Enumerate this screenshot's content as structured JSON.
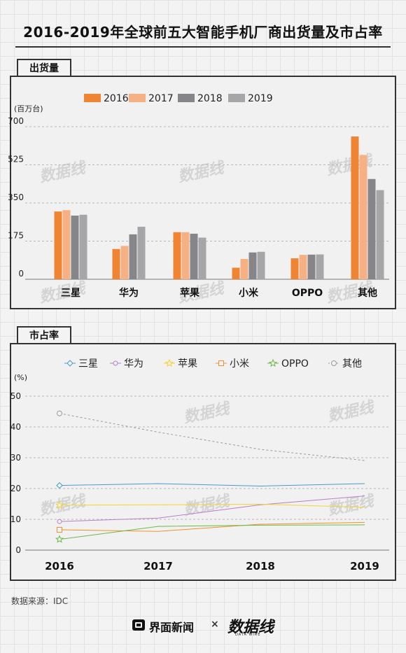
{
  "title": "2016-2019年全球前五大智能手机厂商出货量及市占率",
  "shipments": {
    "tab_label": "出货量",
    "unit_label": "(百万台)"
  },
  "share": {
    "tab_label": "市占率",
    "unit_label": "(%)"
  },
  "watermark": "数据线",
  "source": "数据来源：IDC",
  "brand": {
    "name": "界面新闻",
    "times": "×",
    "partner": "数据线",
    "partner_sub": "DATA WIRE"
  },
  "colors": {
    "bar_2016": "#ef8432",
    "bar_2017": "#f5b183",
    "bar_2018": "#86868a",
    "bar_2019": "#a6a6a8",
    "samsung": "#4a9bc6",
    "huawei": "#b57fc9",
    "apple": "#f2d430",
    "xiaomi": "#f1912e",
    "oppo": "#6cb94a",
    "others": "#9a9a9a"
  },
  "chart_data": [
    {
      "type": "bar",
      "categories": [
        "三星",
        "华为",
        "苹果",
        "小米",
        "OPPO",
        "其他"
      ],
      "series": [
        {
          "name": "2016",
          "values": [
            311,
            139,
            216,
            53,
            96,
            655
          ]
        },
        {
          "name": "2017",
          "values": [
            317,
            153,
            216,
            93,
            112,
            570
          ]
        },
        {
          "name": "2018",
          "values": [
            292,
            206,
            209,
            123,
            113,
            460
          ]
        },
        {
          "name": "2019",
          "values": [
            296,
            241,
            191,
            126,
            114,
            409
          ]
        }
      ],
      "yticks": [
        0,
        175,
        350,
        525,
        700
      ],
      "ylim": [
        0,
        700
      ],
      "ylabel": "(百万台)",
      "legend": "top-center",
      "grid": true
    },
    {
      "type": "line",
      "x": [
        "2016",
        "2017",
        "2018",
        "2019"
      ],
      "series": [
        {
          "name": "三星",
          "values": [
            21.0,
            21.6,
            20.8,
            21.6
          ],
          "marker": "diamond",
          "dashed": false
        },
        {
          "name": "华为",
          "values": [
            9.3,
            10.4,
            14.7,
            17.6
          ],
          "marker": "dot",
          "dashed": false
        },
        {
          "name": "苹果",
          "values": [
            14.6,
            14.7,
            14.9,
            13.9
          ],
          "marker": "star",
          "dashed": false
        },
        {
          "name": "小米",
          "values": [
            6.6,
            6.1,
            8.4,
            9.0
          ],
          "marker": "square",
          "dashed": false
        },
        {
          "name": "OPPO",
          "values": [
            3.5,
            7.7,
            8.1,
            8.2
          ],
          "marker": "star",
          "dashed": false
        },
        {
          "name": "其他",
          "values": [
            44.4,
            38.3,
            32.7,
            29.1
          ],
          "marker": "circle",
          "dashed": true
        }
      ],
      "yticks": [
        0,
        10,
        20,
        30,
        40,
        50
      ],
      "ylim": [
        0,
        50
      ],
      "ylabel": "(%)",
      "legend": "top-center",
      "grid": true
    }
  ]
}
